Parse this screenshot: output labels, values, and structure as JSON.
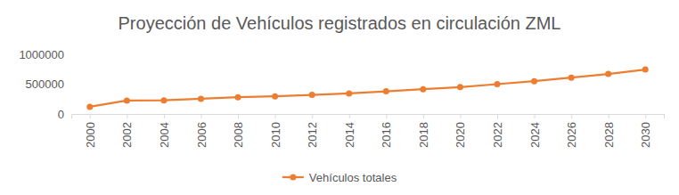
{
  "chart_data": {
    "type": "line",
    "title": "Proyección de Vehículos registrados en circulación ZML",
    "categories": [
      "2000",
      "2002",
      "2004",
      "2006",
      "2008",
      "2010",
      "2012",
      "2014",
      "2016",
      "2018",
      "2020",
      "2022",
      "2024",
      "2026",
      "2028",
      "2030"
    ],
    "series": [
      {
        "name": "Vehículos totales",
        "color": "#ed7d31",
        "marker": "circle",
        "values": [
          120000,
          225000,
          228000,
          255000,
          280000,
          295000,
          320000,
          345000,
          380000,
          415000,
          450000,
          500000,
          550000,
          610000,
          670000,
          745000
        ]
      }
    ],
    "ylim": [
      0,
      1000000
    ],
    "yticks": [
      0,
      500000,
      1000000
    ],
    "grid": false,
    "legend": "bottom"
  }
}
